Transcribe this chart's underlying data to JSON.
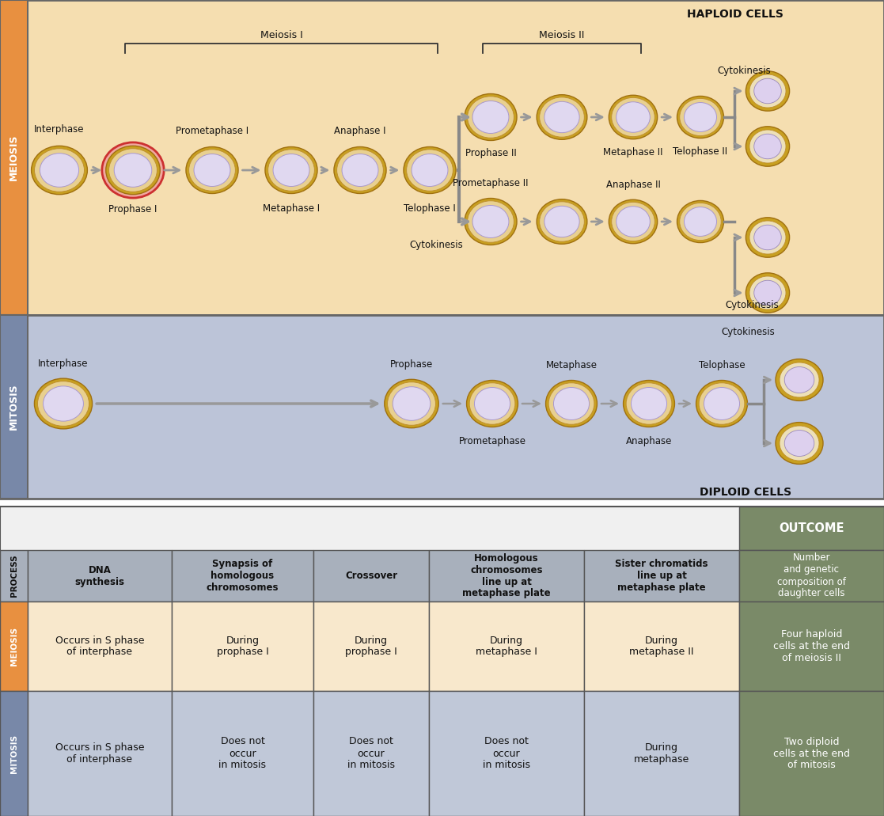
{
  "meiosis_bg": "#f5deb0",
  "meiosis_label_bg": "#e89040",
  "mitosis_bg": "#bcc4d8",
  "mitosis_label_bg": "#7888a8",
  "table_process_bg": "#a8b0bc",
  "table_meiosis_bg": "#f8e8cc",
  "table_mitosis_bg": "#c0c8d8",
  "table_outcome_bg": "#7a8a68",
  "haploid_label": "HAPLOID CELLS",
  "diploid_label": "DIPLOID CELLS",
  "meiosis_I_label": "Meiosis I",
  "meiosis_II_label": "Meiosis II",
  "table_process_header": "PROCESS",
  "table_meiosis_header": "MEIOSIS",
  "table_mitosis_header": "MITOSIS",
  "table_outcome_header": "OUTCOME",
  "table_columns": [
    "DNA\nsynthesis",
    "Synapsis of\nhomologous\nchromosomes",
    "Crossover",
    "Homologous\nchromosomes\nline up at\nmetaphase plate",
    "Sister chromatids\nline up at\nmetaphase plate",
    "Number\nand genetic\ncomposition of\ndaughter cells"
  ],
  "table_meiosis_row": [
    "Occurs in S phase\nof interphase",
    "During\nprophase I",
    "During\nprophase I",
    "During\nmetaphase I",
    "During\nmetaphase II",
    "Four haploid\ncells at the end\nof meiosis II"
  ],
  "table_mitosis_row": [
    "Occurs in S phase\nof interphase",
    "Does not\noccur\nin mitosis",
    "Does not\noccur\nin mitosis",
    "Does not\noccur\nin mitosis",
    "During\nmetaphase",
    "Two diploid\ncells at the end\nof mitosis"
  ]
}
